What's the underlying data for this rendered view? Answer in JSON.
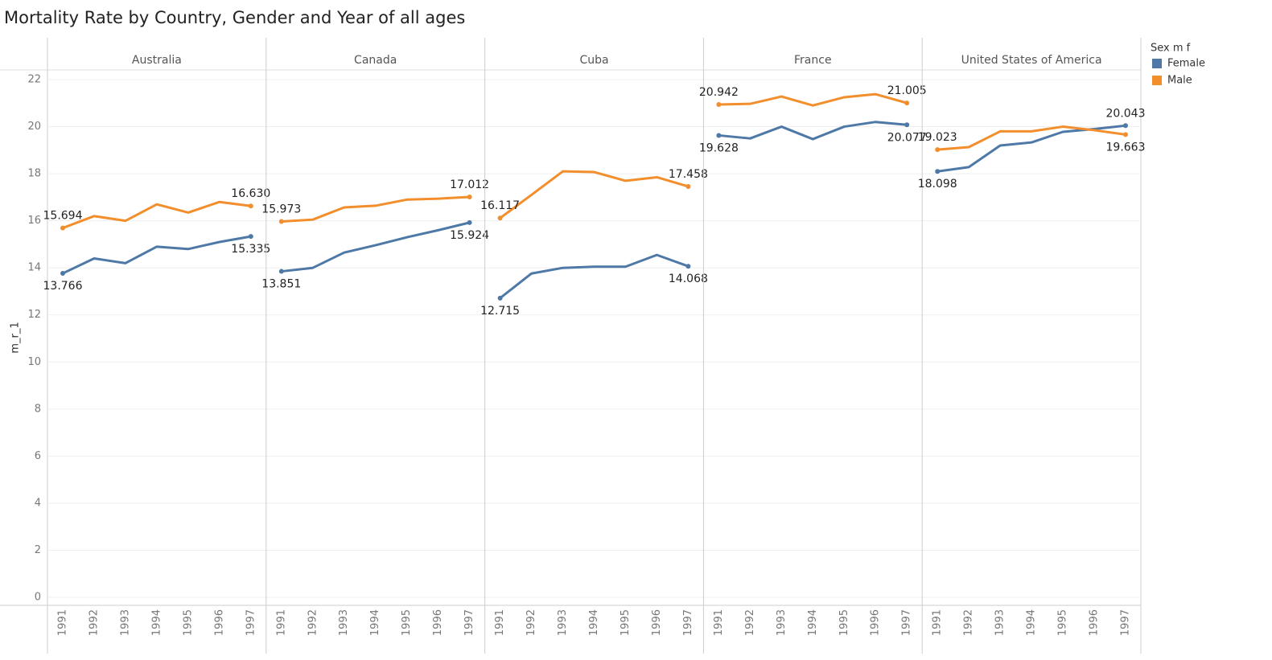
{
  "chart_data": {
    "type": "line",
    "title": "Mortality Rate by Country, Gender and Year of all ages",
    "y_label": "m_r_1",
    "legend_title": "Sex m f",
    "categories": [
      "1991",
      "1992",
      "1993",
      "1994",
      "1995",
      "1996",
      "1997"
    ],
    "ylim": [
      -0.34,
      22.41
    ],
    "yticks": [
      0,
      2,
      4,
      6,
      8,
      10,
      12,
      14,
      16,
      18,
      20,
      22
    ],
    "grid": true,
    "panels": [
      {
        "name": "Australia",
        "series": [
          {
            "name": "Female",
            "color": "#4e79a7",
            "values": [
              13.766,
              14.4,
              14.2,
              14.9,
              14.8,
              15.1,
              15.335
            ],
            "value_labels": [
              "13.766",
              null,
              null,
              null,
              null,
              null,
              "15.335"
            ]
          },
          {
            "name": "Male",
            "color": "#f28e2b",
            "values": [
              15.694,
              16.2,
              16.0,
              16.7,
              16.35,
              16.8,
              16.63
            ],
            "value_labels": [
              "15.694",
              null,
              null,
              null,
              null,
              null,
              "16.630"
            ]
          }
        ]
      },
      {
        "name": "Canada",
        "series": [
          {
            "name": "Female",
            "color": "#4e79a7",
            "values": [
              13.851,
              14.0,
              14.65,
              14.96,
              15.3,
              15.6,
              15.924
            ],
            "value_labels": [
              "13.851",
              null,
              null,
              null,
              null,
              null,
              "15.924"
            ]
          },
          {
            "name": "Male",
            "color": "#f28e2b",
            "values": [
              15.973,
              16.05,
              16.57,
              16.64,
              16.9,
              16.94,
              17.012
            ],
            "value_labels": [
              "15.973",
              null,
              null,
              null,
              null,
              null,
              "17.012"
            ]
          }
        ]
      },
      {
        "name": "Cuba",
        "series": [
          {
            "name": "Female",
            "color": "#4e79a7",
            "values": [
              12.715,
              13.76,
              14.0,
              14.05,
              14.05,
              14.55,
              14.068
            ],
            "value_labels": [
              "12.715",
              null,
              null,
              null,
              null,
              null,
              "14.068"
            ]
          },
          {
            "name": "Male",
            "color": "#f28e2b",
            "values": [
              16.117,
              17.1,
              18.1,
              18.07,
              17.7,
              17.85,
              17.458
            ],
            "value_labels": [
              "16.117",
              null,
              null,
              null,
              null,
              null,
              "17.458"
            ]
          }
        ]
      },
      {
        "name": "France",
        "series": [
          {
            "name": "Female",
            "color": "#4e79a7",
            "values": [
              19.628,
              19.5,
              20.0,
              19.47,
              20.0,
              20.2,
              20.077
            ],
            "value_labels": [
              "19.628",
              null,
              null,
              null,
              null,
              null,
              "20.077"
            ]
          },
          {
            "name": "Male",
            "color": "#f28e2b",
            "values": [
              20.942,
              20.97,
              21.28,
              20.9,
              21.25,
              21.38,
              21.005
            ],
            "value_labels": [
              "20.942",
              null,
              null,
              null,
              null,
              null,
              "21.005"
            ]
          }
        ]
      },
      {
        "name": "United States of America",
        "series": [
          {
            "name": "Female",
            "color": "#4e79a7",
            "values": [
              18.098,
              18.28,
              19.2,
              19.33,
              19.78,
              19.9,
              20.043
            ],
            "value_labels": [
              "18.098",
              null,
              null,
              null,
              null,
              null,
              "20.043"
            ]
          },
          {
            "name": "Male",
            "color": "#f28e2b",
            "values": [
              19.023,
              19.13,
              19.8,
              19.8,
              20.0,
              19.85,
              19.663
            ],
            "value_labels": [
              "19.023",
              null,
              null,
              null,
              null,
              null,
              "19.663"
            ]
          }
        ]
      }
    ]
  }
}
